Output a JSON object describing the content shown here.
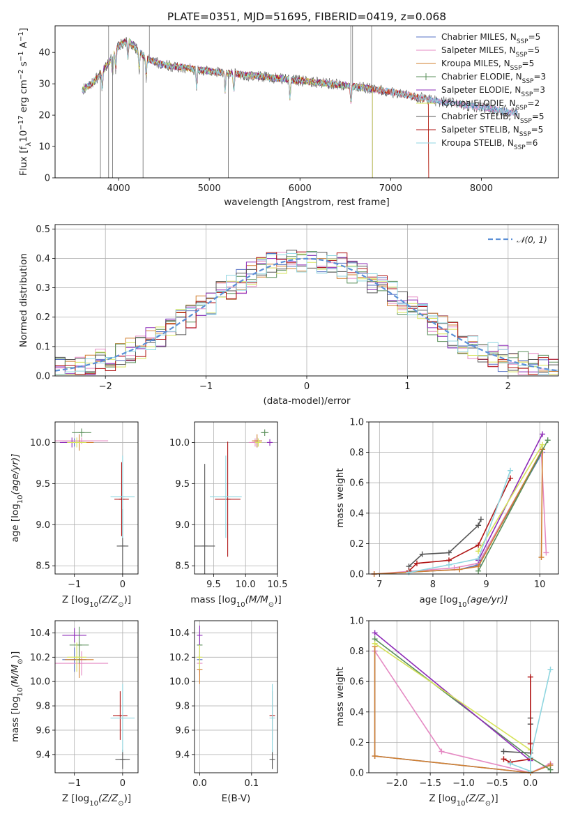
{
  "figure": {
    "title": "PLATE=0351, MJD=51695, FIBERID=0419, z=0.068"
  },
  "legend_models": [
    {
      "label": "Chabrier MILES, N",
      "sub": "SSP",
      "tail": "=5",
      "color": "#5570c4"
    },
    {
      "label": "Salpeter MILES, N",
      "sub": "SSP",
      "tail": "=5",
      "color": "#e58ac3"
    },
    {
      "label": "Kroupa MILES, N",
      "sub": "SSP",
      "tail": "=5",
      "color": "#d17f2e"
    },
    {
      "label": "Chabrier ELODIE, N",
      "sub": "SSP",
      "tail": "=3",
      "color": "#5a8f5a"
    },
    {
      "label": "Salpeter ELODIE, N",
      "sub": "SSP",
      "tail": "=3",
      "color": "#8e2cb8"
    },
    {
      "label": "Kroupa ELODIE, N",
      "sub": "SSP",
      "tail": "=2",
      "color": "#d6e35a"
    },
    {
      "label": "Chabrier STELIB, N",
      "sub": "SSP",
      "tail": "=5",
      "color": "#555555"
    },
    {
      "label": "Salpeter STELIB, N",
      "sub": "SSP",
      "tail": "=5",
      "color": "#b01515"
    },
    {
      "label": "Kroupa STELIB, N",
      "sub": "SSP",
      "tail": "=6",
      "color": "#8fd6e0"
    }
  ],
  "chart_data": [
    {
      "id": "spectrum",
      "type": "line",
      "title": "PLATE=0351, MJD=51695, FIBERID=0419, z=0.068",
      "xlabel": "wavelength [Angstrom, rest frame]",
      "ylabel": "Flux [f",
      "ylabel_sub": "λ",
      "ylabel_rest": "10",
      "ylabel_exp": "−17",
      "ylabel_unit": " erg cm",
      "ylabel_exp2": "−2",
      "ylabel_unit2": " s",
      "ylabel_exp3": "−1",
      "ylabel_unit3": " A",
      "ylabel_exp4": "−1",
      "ylabel_end": "]",
      "xlim": [
        3300,
        8850
      ],
      "ylim": [
        0,
        48.5
      ],
      "xticks": [
        4000,
        5000,
        6000,
        7000,
        8000
      ],
      "yticks": [
        0,
        10,
        20,
        30,
        40
      ],
      "continuum_x": [
        3600,
        3700,
        3800,
        3900,
        4000,
        4100,
        4300,
        4500,
        5000,
        5500,
        6000,
        6500,
        7000,
        7500,
        8000,
        8400
      ],
      "continuum_y": [
        28,
        30,
        33,
        37,
        42,
        44,
        38,
        36,
        34,
        32.5,
        31,
        29.5,
        27.5,
        24.5,
        22.5,
        20.5
      ],
      "absorption_lines": [
        3820,
        3934,
        3969,
        4102,
        4227,
        4304,
        4861,
        5175,
        5270,
        5890,
        6563
      ],
      "spikes_x": [
        3890,
        4340,
        6560,
        6580,
        6790
      ]
    },
    {
      "id": "residuals",
      "type": "bar",
      "xlabel": "(data-model)/error",
      "ylabel": "Normed distribution",
      "xlim": [
        -2.5,
        2.5
      ],
      "ylim": [
        0,
        0.515
      ],
      "xticks": [
        -2,
        -1,
        0,
        1,
        2
      ],
      "yticks": [
        0.0,
        0.1,
        0.2,
        0.3,
        0.4,
        0.5
      ],
      "gaussian_label": "𝒩(0, 1)",
      "gaussian_color": "#5b8fd6",
      "bin_width": 0.1
    },
    {
      "id": "age-vs-Z",
      "type": "scatter",
      "xlabel": "Z [log",
      "xlabel_sub": "10",
      "xlabel_rest": "(Z/Z",
      "xlabel_sub2": "⊙",
      "xlabel_end": ")]",
      "ylabel": "age  [log",
      "ylabel_sub": "10",
      "ylabel_rest": "(age/yr)]",
      "xlim": [
        -1.4,
        0.32
      ],
      "ylim": [
        8.4,
        10.25
      ],
      "xticks": [
        -1,
        0
      ],
      "yticks": [
        8.5,
        9.0,
        9.5,
        10.0
      ],
      "points": [
        {
          "x": -1.0,
          "y": 10.0,
          "xerr": 0.25,
          "yerr": 0.05,
          "c": 0
        },
        {
          "x": -0.85,
          "y": 10.02,
          "xerr": 0.55,
          "yerr": 0.04,
          "c": 1
        },
        {
          "x": -0.9,
          "y": 10.0,
          "xerr": 0.3,
          "yerr": 0.1,
          "c": 2
        },
        {
          "x": -0.85,
          "y": 10.12,
          "xerr": 0.2,
          "yerr": 0.05,
          "c": 3
        },
        {
          "x": -1.05,
          "y": 10.0,
          "xerr": 0.25,
          "yerr": 0.06,
          "c": 4
        },
        {
          "x": -0.95,
          "y": 10.0,
          "xerr": 0.2,
          "yerr": 0.06,
          "c": 5
        },
        {
          "x": 0.0,
          "y": 8.74,
          "xerr": 0.12,
          "yerr": 0.45,
          "c": 6
        },
        {
          "x": -0.02,
          "y": 9.31,
          "xerr": 0.15,
          "yerr": 0.45,
          "c": 7
        },
        {
          "x": 0.0,
          "y": 9.34,
          "xerr": 0.25,
          "yerr": 0.5,
          "c": 8
        }
      ]
    },
    {
      "id": "age-vs-mass",
      "type": "scatter",
      "xlabel": "mass [log",
      "xlabel_sub": "10",
      "xlabel_rest": "(M/M",
      "xlabel_sub2": "⊙",
      "xlabel_end": ")]",
      "xlim": [
        9.2,
        10.5
      ],
      "ylim": [
        8.4,
        10.25
      ],
      "xticks": [
        9.5,
        10.0,
        10.5
      ],
      "yticks": [
        8.5,
        9.0,
        9.5,
        10.0
      ],
      "points": [
        {
          "x": 10.18,
          "y": 10.0,
          "xerr": 0.06,
          "yerr": 0.06,
          "c": 0
        },
        {
          "x": 10.15,
          "y": 10.0,
          "xerr": 0.1,
          "yerr": 0.05,
          "c": 1
        },
        {
          "x": 10.18,
          "y": 10.02,
          "xerr": 0.08,
          "yerr": 0.08,
          "c": 2
        },
        {
          "x": 10.3,
          "y": 10.12,
          "xerr": 0.06,
          "yerr": 0.04,
          "c": 3
        },
        {
          "x": 10.38,
          "y": 10.0,
          "xerr": 0.04,
          "yerr": 0.04,
          "c": 4
        },
        {
          "x": 10.2,
          "y": 10.0,
          "xerr": 0.05,
          "yerr": 0.05,
          "c": 5
        },
        {
          "x": 9.36,
          "y": 8.74,
          "xerr": 0.16,
          "yerr": 1.0,
          "c": 6
        },
        {
          "x": 9.72,
          "y": 9.31,
          "xerr": 0.2,
          "yerr": 0.7,
          "c": 7
        },
        {
          "x": 9.69,
          "y": 9.34,
          "xerr": 0.25,
          "yerr": 0.5,
          "c": 8
        }
      ]
    },
    {
      "id": "weight-vs-age",
      "type": "line",
      "xlabel": "age  [log",
      "xlabel_sub": "10",
      "xlabel_rest": "(age/yr)]",
      "ylabel": "mass weight",
      "xlim": [
        6.8,
        10.35
      ],
      "ylim": [
        0,
        1.0
      ],
      "xticks": [
        7,
        8,
        9,
        10
      ],
      "yticks": [
        0.0,
        0.2,
        0.4,
        0.6,
        0.8,
        1.0
      ],
      "series": [
        {
          "c": 0,
          "x": [
            6.9,
            8.5,
            8.85,
            10.05
          ],
          "y": [
            0.0,
            0.03,
            0.06,
            0.8
          ]
        },
        {
          "c": 1,
          "x": [
            6.9,
            8.4,
            8.85,
            10.03,
            10.12
          ],
          "y": [
            0.0,
            0.04,
            0.07,
            0.8,
            0.14
          ]
        },
        {
          "c": 2,
          "x": [
            6.9,
            8.5,
            8.85,
            10.05,
            10.03
          ],
          "y": [
            0.0,
            0.03,
            0.05,
            0.82,
            0.11
          ]
        },
        {
          "c": 3,
          "x": [
            8.85,
            10.15
          ],
          "y": [
            0.02,
            0.88
          ]
        },
        {
          "c": 4,
          "x": [
            8.85,
            10.05
          ],
          "y": [
            0.09,
            0.92
          ]
        },
        {
          "c": 5,
          "x": [
            8.85,
            10.05
          ],
          "y": [
            0.15,
            0.85
          ]
        },
        {
          "c": 6,
          "x": [
            7.55,
            7.8,
            8.3,
            8.85,
            8.9
          ],
          "y": [
            0.05,
            0.13,
            0.14,
            0.32,
            0.36
          ]
        },
        {
          "c": 7,
          "x": [
            7.55,
            7.7,
            8.3,
            8.85,
            9.45
          ],
          "y": [
            0.02,
            0.07,
            0.09,
            0.19,
            0.63
          ]
        },
        {
          "c": 8,
          "x": [
            7.55,
            8.3,
            8.85,
            9.45
          ],
          "y": [
            0.01,
            0.06,
            0.1,
            0.68
          ]
        }
      ]
    },
    {
      "id": "mass-vs-Z",
      "type": "scatter",
      "xlabel": "Z [log",
      "xlabel_sub": "10",
      "xlabel_rest": "(Z/Z",
      "xlabel_sub2": "⊙",
      "xlabel_end": ")]",
      "ylabel": "mass [log",
      "ylabel_sub": "10",
      "ylabel_rest": "(M/M",
      "ylabel_sub2": "⊙",
      "ylabel_end": ")]",
      "xlim": [
        -1.4,
        0.32
      ],
      "ylim": [
        9.25,
        10.5
      ],
      "xticks": [
        -1,
        0
      ],
      "yticks": [
        9.4,
        9.6,
        9.8,
        10.0,
        10.2,
        10.4
      ],
      "points": [
        {
          "x": -1.0,
          "y": 10.18,
          "xerr": 0.25,
          "yerr": 0.1,
          "c": 0
        },
        {
          "x": -0.85,
          "y": 10.15,
          "xerr": 0.55,
          "yerr": 0.1,
          "c": 1
        },
        {
          "x": -0.9,
          "y": 10.18,
          "xerr": 0.3,
          "yerr": 0.15,
          "c": 2
        },
        {
          "x": -0.9,
          "y": 10.3,
          "xerr": 0.2,
          "yerr": 0.15,
          "c": 3
        },
        {
          "x": -1.0,
          "y": 10.38,
          "xerr": 0.25,
          "yerr": 0.06,
          "c": 4
        },
        {
          "x": -0.95,
          "y": 10.2,
          "xerr": 0.2,
          "yerr": 0.12,
          "c": 5
        },
        {
          "x": 0.0,
          "y": 9.36,
          "xerr": 0.15,
          "yerr": 0.08,
          "c": 6
        },
        {
          "x": -0.05,
          "y": 9.72,
          "xerr": 0.15,
          "yerr": 0.2,
          "c": 7
        },
        {
          "x": 0.0,
          "y": 9.7,
          "xerr": 0.25,
          "yerr": 0.28,
          "c": 8
        }
      ]
    },
    {
      "id": "mass-vs-EBV",
      "type": "scatter",
      "xlabel": "E(B-V)",
      "xlim": [
        -0.01,
        0.15
      ],
      "ylim": [
        9.25,
        10.5
      ],
      "xticks": [
        0.0,
        0.1
      ],
      "yticks": [
        9.4,
        9.6,
        9.8,
        10.0,
        10.2,
        10.4
      ],
      "points": [
        {
          "x": 0.0,
          "y": 10.18,
          "xerr": 0.0,
          "yerr": 0.1,
          "c": 0
        },
        {
          "x": 0.0,
          "y": 10.15,
          "xerr": 0.0,
          "yerr": 0.1,
          "c": 1
        },
        {
          "x": 0.0,
          "y": 10.1,
          "xerr": 0.0,
          "yerr": 0.12,
          "c": 2
        },
        {
          "x": 0.0,
          "y": 10.3,
          "xerr": 0.0,
          "yerr": 0.12,
          "c": 3
        },
        {
          "x": 0.0,
          "y": 10.38,
          "xerr": 0.0,
          "yerr": 0.08,
          "c": 4
        },
        {
          "x": 0.0,
          "y": 10.2,
          "xerr": 0.0,
          "yerr": 0.1,
          "c": 5
        },
        {
          "x": 0.14,
          "y": 9.36,
          "xerr": 0.0,
          "yerr": 0.08,
          "c": 6
        },
        {
          "x": 0.14,
          "y": 9.72,
          "xerr": 0.0,
          "yerr": 0.2,
          "c": 7
        },
        {
          "x": 0.14,
          "y": 9.7,
          "xerr": 0.0,
          "yerr": 0.28,
          "c": 8
        }
      ]
    },
    {
      "id": "weight-vs-Z",
      "type": "line",
      "xlabel": "Z [log",
      "xlabel_sub": "10",
      "xlabel_rest": "(Z/Z",
      "xlabel_sub2": "⊙",
      "xlabel_end": ")]",
      "ylabel": "mass weight",
      "xlim": [
        -2.42,
        0.42
      ],
      "ylim": [
        0,
        1.0
      ],
      "xticks": [
        -2.0,
        -1.5,
        -1.0,
        -0.5,
        0.0
      ],
      "xtick_labels": [
        "−2.0",
        "−1.5",
        "−1.0",
        "−0.5",
        "0.0"
      ],
      "yticks": [
        0.0,
        0.2,
        0.4,
        0.6,
        0.8,
        1.0
      ],
      "series": [
        {
          "c": 0,
          "x": [
            -2.33,
            -2.33,
            0.0,
            0.3
          ],
          "y": [
            0.8,
            0.11,
            0.0,
            0.05
          ]
        },
        {
          "c": 1,
          "x": [
            -2.33,
            -1.33,
            0.0,
            0.3
          ],
          "y": [
            0.8,
            0.14,
            0.0,
            0.06
          ]
        },
        {
          "c": 2,
          "x": [
            -2.33,
            -2.33,
            0.0,
            0.3
          ],
          "y": [
            0.83,
            0.11,
            0.0,
            0.05
          ]
        },
        {
          "c": 3,
          "x": [
            -2.33,
            0.0,
            0.3
          ],
          "y": [
            0.88,
            0.1,
            0.02
          ]
        },
        {
          "c": 4,
          "x": [
            -2.33,
            0.0
          ],
          "y": [
            0.92,
            0.08
          ]
        },
        {
          "c": 5,
          "x": [
            -2.33,
            0.0
          ],
          "y": [
            0.85,
            0.15
          ]
        },
        {
          "c": 6,
          "x": [
            -0.4,
            0.0,
            0.0,
            0.0
          ],
          "y": [
            0.14,
            0.13,
            0.32,
            0.36
          ]
        },
        {
          "c": 7,
          "x": [
            -0.4,
            -0.3,
            0.0,
            0.0,
            0.0
          ],
          "y": [
            0.09,
            0.07,
            0.09,
            0.19,
            0.63
          ]
        },
        {
          "c": 8,
          "x": [
            -0.3,
            0.0,
            0.0,
            0.3
          ],
          "y": [
            0.06,
            0.01,
            0.1,
            0.68
          ]
        }
      ]
    }
  ]
}
